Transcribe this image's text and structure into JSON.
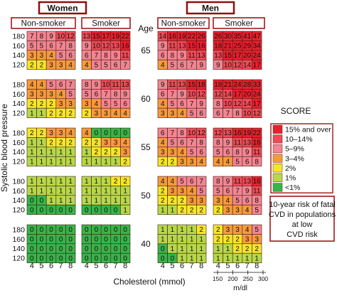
{
  "chart_data": {
    "type": "heatmap",
    "title": "",
    "sexes": [
      "Women",
      "Men"
    ],
    "smoking_labels": [
      "Non-smoker",
      "Smoker"
    ],
    "age_label": "Age",
    "ages": [
      "65",
      "60",
      "55",
      "50",
      "40"
    ],
    "systolic_bp": [
      "180",
      "160",
      "140",
      "120"
    ],
    "cholesterol_mmol": [
      "4",
      "5",
      "6",
      "7",
      "8"
    ],
    "mgdl_ticks": [
      "150",
      "200",
      "250",
      "300"
    ],
    "xlabel": "Cholesterol (mmol)",
    "xlabel_mgdl": "m/dl",
    "ylabel": "Systolic blood pressure",
    "legend_title": "SCORE",
    "legend": [
      {
        "label": "15% and over",
        "color": "#e8202c"
      },
      {
        "label": "10–14%",
        "color": "#ef4b56"
      },
      {
        "label": "5–9%",
        "color": "#f38590"
      },
      {
        "label": "3–4%",
        "color": "#f79a3c"
      },
      {
        "label": "2%",
        "color": "#f6e629"
      },
      {
        "label": "1%",
        "color": "#b7d848"
      },
      {
        "label": "<1%",
        "color": "#38b449"
      }
    ],
    "note": "10-year risk of fatal CVD in populations at low CVD risk",
    "grids": {
      "women": {
        "non_smoker": [
          [
            [
              7,
              8,
              9,
              10,
              12
            ],
            [
              5,
              5,
              6,
              7,
              8
            ],
            [
              3,
              3,
              4,
              5,
              6
            ],
            [
              2,
              2,
              3,
              3,
              4
            ]
          ],
          [
            [
              4,
              4,
              5,
              6,
              7
            ],
            [
              3,
              3,
              3,
              4,
              5
            ],
            [
              2,
              2,
              2,
              3,
              3
            ],
            [
              1,
              1,
              2,
              2,
              2
            ]
          ],
          [
            [
              2,
              2,
              3,
              3,
              4
            ],
            [
              1,
              1,
              2,
              2,
              2
            ],
            [
              1,
              1,
              1,
              1,
              1
            ],
            [
              1,
              1,
              1,
              1,
              1
            ]
          ],
          [
            [
              1,
              1,
              1,
              1,
              1
            ],
            [
              1,
              1,
              1,
              1,
              1
            ],
            [
              0,
              0,
              1,
              1,
              1
            ],
            [
              0,
              0,
              0,
              0,
              0
            ]
          ],
          [
            [
              0,
              0,
              0,
              0,
              0
            ],
            [
              0,
              0,
              0,
              0,
              0
            ],
            [
              0,
              0,
              0,
              0,
              0
            ],
            [
              0,
              0,
              0,
              0,
              0
            ]
          ]
        ],
        "smoker": [
          [
            [
              13,
              15,
              17,
              19,
              22
            ],
            [
              9,
              10,
              12,
              13,
              16
            ],
            [
              6,
              7,
              8,
              9,
              11
            ],
            [
              4,
              5,
              5,
              6,
              7
            ]
          ],
          [
            [
              8,
              9,
              10,
              11,
              13
            ],
            [
              5,
              6,
              7,
              8,
              9
            ],
            [
              3,
              4,
              5,
              5,
              6
            ],
            [
              2,
              3,
              3,
              4,
              4
            ]
          ],
          [
            [
              4,
              0,
              0,
              0,
              0
            ],
            [
              2,
              2,
              3,
              3,
              4
            ],
            [
              1,
              2,
              2,
              2,
              3
            ],
            [
              1,
              1,
              1,
              1,
              2
            ]
          ],
          [
            [
              1,
              1,
              1,
              2,
              2
            ],
            [
              1,
              1,
              1,
              1,
              1
            ],
            [
              1,
              1,
              1,
              1,
              1
            ],
            [
              0,
              0,
              0,
              0,
              1
            ]
          ],
          [
            [
              0,
              0,
              0,
              0,
              0
            ],
            [
              0,
              0,
              0,
              0,
              0
            ],
            [
              0,
              0,
              0,
              0,
              0
            ],
            [
              0,
              0,
              0,
              0,
              0
            ]
          ]
        ]
      },
      "men": {
        "non_smoker": [
          [
            [
              14,
              16,
              19,
              22,
              26
            ],
            [
              9,
              11,
              13,
              15,
              16
            ],
            [
              6,
              8,
              9,
              11,
              13
            ],
            [
              4,
              5,
              6,
              7,
              9
            ]
          ],
          [
            [
              9,
              11,
              13,
              15,
              18
            ],
            [
              6,
              7,
              9,
              10,
              12
            ],
            [
              4,
              5,
              6,
              7,
              9
            ],
            [
              3,
              3,
              4,
              5,
              6
            ]
          ],
          [
            [
              6,
              7,
              8,
              10,
              12
            ],
            [
              4,
              5,
              6,
              7,
              8
            ],
            [
              3,
              3,
              4,
              5,
              6
            ],
            [
              2,
              2,
              3,
              3,
              4
            ]
          ],
          [
            [
              4,
              4,
              5,
              6,
              7
            ],
            [
              2,
              3,
              3,
              4,
              5
            ],
            [
              2,
              2,
              2,
              3,
              3
            ],
            [
              1,
              1,
              2,
              2,
              2
            ]
          ],
          [
            [
              1,
              1,
              1,
              1,
              2
            ],
            [
              1,
              1,
              1,
              1,
              1
            ],
            [
              0,
              1,
              1,
              1,
              1
            ],
            [
              0,
              0,
              1,
              1,
              1
            ]
          ]
        ],
        "smoker": [
          [
            [
              26,
              30,
              35,
              41,
              47
            ],
            [
              18,
              21,
              25,
              29,
              34
            ],
            [
              13,
              15,
              17,
              20,
              24
            ],
            [
              9,
              10,
              12,
              14,
              17
            ]
          ],
          [
            [
              18,
              21,
              24,
              28,
              33
            ],
            [
              12,
              14,
              17,
              20,
              24
            ],
            [
              8,
              10,
              12,
              14,
              17
            ],
            [
              6,
              7,
              8,
              10,
              12
            ]
          ],
          [
            [
              12,
              13,
              16,
              19,
              22
            ],
            [
              8,
              9,
              11,
              13,
              16
            ],
            [
              5,
              6,
              8,
              9,
              11
            ],
            [
              4,
              4,
              5,
              6,
              8
            ]
          ],
          [
            [
              8,
              9,
              11,
              13,
              16
            ],
            [
              5,
              6,
              7,
              9,
              11
            ],
            [
              3,
              4,
              5,
              6,
              8
            ],
            [
              2,
              3,
              3,
              4,
              5
            ]
          ],
          [
            [
              2,
              3,
              3,
              4,
              5
            ],
            [
              2,
              2,
              2,
              3,
              3
            ],
            [
              1,
              1,
              2,
              2,
              2
            ],
            [
              1,
              1,
              1,
              1,
              1
            ]
          ]
        ]
      }
    }
  }
}
